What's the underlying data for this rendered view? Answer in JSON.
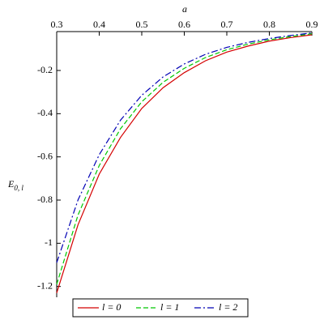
{
  "chart_data": {
    "type": "line",
    "x_label": "a",
    "y_label": "E",
    "y_label_subscript": "0, l",
    "x": [
      0.3,
      0.35,
      0.4,
      0.45,
      0.5,
      0.55,
      0.6,
      0.65,
      0.7,
      0.75,
      0.8,
      0.85,
      0.9
    ],
    "series": [
      {
        "name": "l = 0",
        "color": "#d40000",
        "dash": "solid",
        "values": [
          -1.23,
          -0.915,
          -0.68,
          -0.51,
          -0.376,
          -0.28,
          -0.21,
          -0.155,
          -0.115,
          -0.087,
          -0.064,
          -0.048,
          -0.035
        ]
      },
      {
        "name": "l = 1",
        "color": "#00c800",
        "dash": "dash",
        "values": [
          -1.19,
          -0.87,
          -0.64,
          -0.47,
          -0.345,
          -0.255,
          -0.19,
          -0.14,
          -0.104,
          -0.078,
          -0.058,
          -0.043,
          -0.03
        ]
      },
      {
        "name": "l = 2",
        "color": "#0000b4",
        "dash": "dashdot",
        "values": [
          -1.09,
          -0.8,
          -0.59,
          -0.43,
          -0.315,
          -0.23,
          -0.17,
          -0.125,
          -0.093,
          -0.07,
          -0.052,
          -0.038,
          -0.026
        ]
      }
    ],
    "xlim": [
      0.3,
      0.9
    ],
    "ylim": [
      -1.25,
      -0.02
    ],
    "xticks": [
      0.3,
      0.4,
      0.5,
      0.6,
      0.7,
      0.8,
      0.9
    ],
    "yticks": [
      -1.2,
      -1,
      -0.8,
      -0.6,
      -0.4,
      -0.2
    ],
    "legend": "bottom"
  }
}
